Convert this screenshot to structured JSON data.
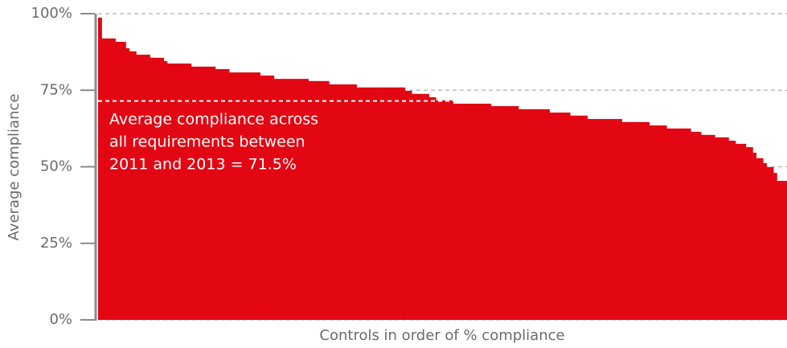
{
  "chart_data": {
    "type": "step-area",
    "y_label": "Average compliance",
    "x_label": "Controls in order of % compliance",
    "ylim": [
      0,
      100
    ],
    "yticks": [
      {
        "value": 0,
        "label": "0%"
      },
      {
        "value": 25,
        "label": "25%"
      },
      {
        "value": 50,
        "label": "50%"
      },
      {
        "value": 75,
        "label": "75%"
      },
      {
        "value": 100,
        "label": "100%"
      }
    ],
    "grid": true,
    "color": "#e30613",
    "average": 71.5,
    "annotation": [
      "Average compliance across",
      "all requirements between",
      "2011 and 2013 = 71.5%"
    ],
    "values": [
      98.7,
      91.9,
      91.9,
      91.9,
      91.9,
      90.8,
      90.8,
      90.8,
      88.7,
      87.7,
      87.7,
      86.6,
      86.6,
      86.6,
      86.6,
      85.6,
      85.6,
      85.6,
      85.6,
      84.5,
      83.7,
      83.7,
      83.7,
      83.7,
      83.7,
      83.7,
      83.7,
      82.7,
      82.7,
      82.7,
      82.7,
      82.7,
      82.7,
      82.7,
      81.9,
      81.9,
      81.9,
      81.9,
      80.8,
      80.8,
      80.8,
      80.8,
      80.8,
      80.8,
      80.8,
      80.8,
      80.8,
      79.8,
      79.8,
      79.8,
      79.8,
      78.7,
      78.7,
      78.7,
      78.7,
      78.7,
      78.7,
      78.7,
      78.7,
      78.7,
      78.7,
      78.0,
      78.0,
      78.0,
      78.0,
      78.0,
      78.0,
      76.9,
      76.9,
      76.9,
      76.9,
      76.9,
      76.9,
      76.9,
      76.9,
      75.9,
      75.9,
      75.9,
      75.9,
      75.9,
      75.9,
      75.9,
      75.9,
      75.9,
      75.9,
      75.9,
      75.9,
      75.9,
      75.9,
      74.8,
      74.8,
      73.8,
      73.8,
      73.8,
      73.8,
      73.8,
      72.7,
      72.7,
      71.7,
      71.7,
      71.7,
      71.7,
      71.7,
      70.6,
      70.6,
      70.6,
      70.6,
      70.6,
      70.6,
      70.6,
      70.6,
      70.6,
      70.6,
      70.6,
      69.8,
      69.8,
      69.8,
      69.8,
      69.8,
      69.8,
      69.8,
      69.8,
      68.8,
      68.8,
      68.8,
      68.8,
      68.8,
      68.8,
      68.8,
      68.8,
      68.8,
      67.7,
      67.7,
      67.7,
      67.7,
      67.7,
      67.7,
      66.7,
      66.7,
      66.7,
      66.7,
      66.7,
      65.6,
      65.6,
      65.6,
      65.6,
      65.6,
      65.6,
      65.6,
      65.6,
      65.6,
      65.6,
      64.6,
      64.6,
      64.6,
      64.6,
      64.6,
      64.6,
      64.6,
      64.6,
      63.5,
      63.5,
      63.5,
      63.5,
      63.5,
      62.5,
      62.5,
      62.5,
      62.5,
      62.5,
      62.5,
      62.5,
      61.4,
      61.4,
      61.4,
      60.4,
      60.4,
      60.4,
      60.4,
      59.6,
      59.6,
      59.6,
      59.6,
      58.5,
      58.5,
      57.5,
      57.5,
      57.5,
      56.4,
      56.4,
      54.6,
      52.8,
      52.8,
      51.2,
      49.9,
      49.9,
      48.0,
      45.4,
      45.4,
      45.4
    ]
  }
}
